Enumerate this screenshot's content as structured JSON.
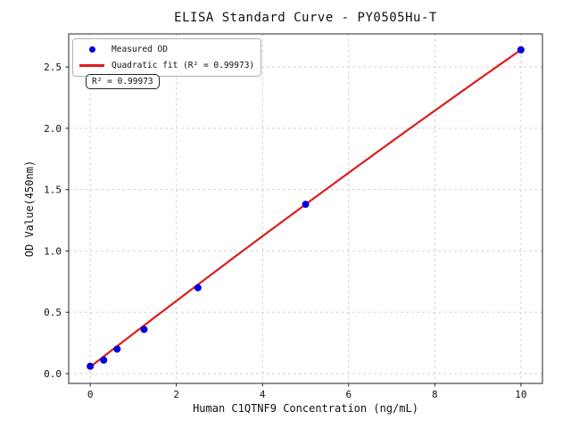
{
  "title": "ELISA Standard Curve - PY0505Hu-T",
  "chart_data": {
    "type": "scatter",
    "title": "ELISA Standard Curve - PY0505Hu-T",
    "xlabel": "Human C1QTNF9 Concentration (ng/mL)",
    "ylabel": "OD Value(450nm)",
    "xlim": [
      -0.5,
      10.5
    ],
    "ylim": [
      -0.08,
      2.77
    ],
    "x_ticks": [
      0,
      2,
      4,
      6,
      8,
      10
    ],
    "x_tick_labels": [
      "0",
      "2",
      "4",
      "6",
      "8",
      "10"
    ],
    "y_ticks": [
      0.0,
      0.5,
      1.0,
      1.5,
      2.0,
      2.5
    ],
    "y_tick_labels": [
      "0.0",
      "0.5",
      "1.0",
      "1.5",
      "2.0",
      "2.5"
    ],
    "grid": true,
    "grid_color": "#d0d0d0",
    "frame_color": "#262626",
    "text_color": "#111111",
    "legend_position": "upper-left",
    "series": [
      {
        "name": "Measured OD",
        "type": "scatter",
        "color": "#0000dd",
        "x": [
          0,
          0.3125,
          0.625,
          1.25,
          2.5,
          5,
          10
        ],
        "y": [
          0.06,
          0.11,
          0.2,
          0.36,
          0.7,
          1.38,
          2.64
        ]
      },
      {
        "name": "Quadratic fit (R² = 0.99973)",
        "type": "line",
        "color": "#dd1c1c",
        "fit": {
          "kind": "quadratic",
          "a": 0.055,
          "b": 0.2715,
          "c": -0.0013,
          "x_range": [
            0,
            10
          ],
          "r_squared": 0.99973
        }
      }
    ],
    "annotation": "R² = 0.99973"
  },
  "legend": {
    "items": [
      {
        "label": "Measured OD"
      },
      {
        "label": "Quadratic fit (R² = 0.99973)"
      }
    ]
  }
}
